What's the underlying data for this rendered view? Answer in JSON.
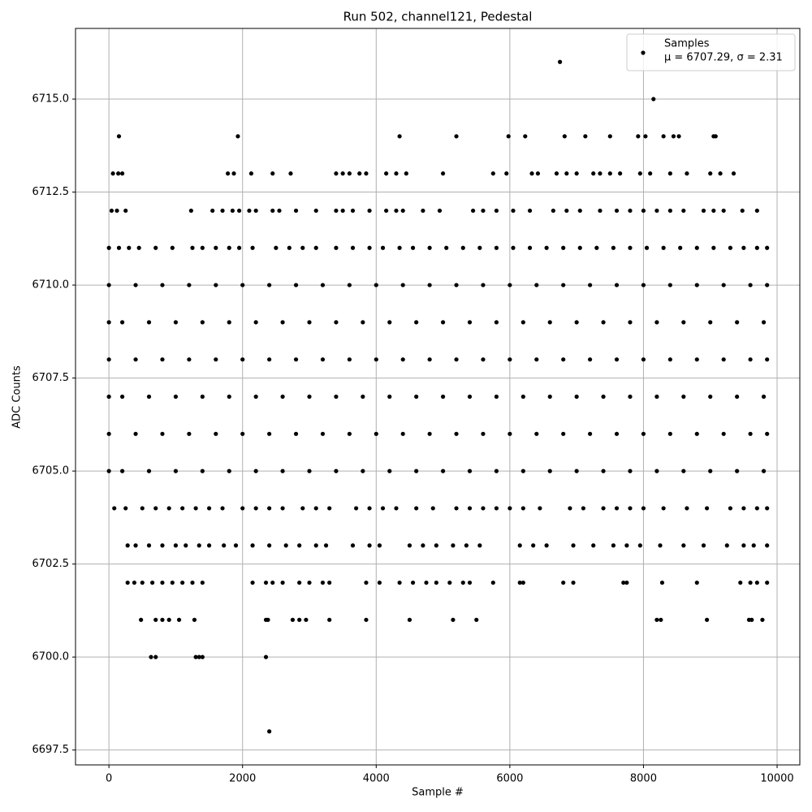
{
  "chart_data": {
    "type": "scatter",
    "title": "Run 502, channel121, Pedestal",
    "x_label": "Sample #",
    "y_label": "ADC Counts",
    "legend_note": "μ = 6707.29, σ = 2.31",
    "legend": "upper right",
    "grid": true,
    "xlim": [
      -500,
      10340
    ],
    "ylim": [
      6697.1,
      6716.9
    ],
    "xticks": [
      0,
      2000,
      4000,
      6000,
      8000,
      10000
    ],
    "yticks": [
      6697.5,
      {
        "value": 6700,
        "label": "6700.0"
      },
      6702.5,
      {
        "value": 6705,
        "label": "6705.0"
      },
      6707.5,
      {
        "value": 6710,
        "label": "6710.0"
      },
      6712.5,
      {
        "value": 6715,
        "label": "6715.0"
      }
    ],
    "x": [
      6750,
      8150,
      150,
      1930,
      4350,
      5200,
      5980,
      6230,
      6820,
      7130,
      7500,
      7920,
      8030,
      8300,
      8450,
      8530,
      9050,
      9080,
      60,
      140,
      200,
      1780,
      1870,
      2130,
      2450,
      2720,
      3400,
      3500,
      3600,
      3750,
      3850,
      4150,
      4300,
      4450,
      5000,
      5750,
      5950,
      6330,
      6420,
      6700,
      6850,
      7000,
      7250,
      7350,
      7500,
      7650,
      7950,
      8100,
      8400,
      8650,
      9000,
      9150,
      9350,
      40,
      120,
      250,
      1230,
      1550,
      1700,
      1850,
      1950,
      2100,
      2200,
      2450,
      2550,
      2800,
      3100,
      3400,
      3500,
      3650,
      3900,
      4150,
      4300,
      4400,
      4700,
      4950,
      5450,
      5600,
      5800,
      6050,
      6300,
      6650,
      6850,
      7050,
      7350,
      7600,
      7800,
      8000,
      8200,
      8400,
      8600,
      8900,
      9050,
      9200,
      9480,
      9700,
      0,
      150,
      300,
      450,
      700,
      950,
      1250,
      1400,
      1600,
      1800,
      1950,
      2150,
      2500,
      2700,
      2900,
      3100,
      3400,
      3650,
      3900,
      4100,
      4350,
      4550,
      4800,
      5050,
      5300,
      5550,
      5800,
      6050,
      6300,
      6550,
      6800,
      7050,
      7300,
      7550,
      7800,
      8050,
      8300,
      8550,
      8800,
      9050,
      9300,
      9500,
      9700,
      9850,
      0,
      400,
      800,
      1200,
      1600,
      2000,
      2400,
      2800,
      3200,
      3600,
      4000,
      4400,
      4800,
      5200,
      5600,
      6000,
      6400,
      6800,
      7200,
      7600,
      8000,
      8400,
      8800,
      9200,
      9600,
      9850,
      0,
      200,
      600,
      1000,
      1400,
      1800,
      2200,
      2600,
      3000,
      3400,
      3800,
      4200,
      4600,
      5000,
      5400,
      5800,
      6200,
      6600,
      7000,
      7400,
      7800,
      8200,
      8600,
      9000,
      9400,
      9800,
      0,
      400,
      800,
      1200,
      1600,
      2000,
      2400,
      2800,
      3200,
      3600,
      4000,
      4400,
      4800,
      5200,
      5600,
      6000,
      6400,
      6800,
      7200,
      7600,
      8000,
      8400,
      8800,
      9200,
      9600,
      9850,
      0,
      200,
      600,
      1000,
      1400,
      1800,
      2200,
      2600,
      3000,
      3400,
      3800,
      4200,
      4600,
      5000,
      5400,
      5800,
      6200,
      6600,
      7000,
      7400,
      7800,
      8200,
      8600,
      9000,
      9400,
      9800,
      0,
      400,
      800,
      1200,
      1600,
      2000,
      2400,
      2800,
      3200,
      3600,
      4000,
      4400,
      4800,
      5200,
      5600,
      6000,
      6400,
      6800,
      7200,
      7600,
      8000,
      8400,
      8800,
      9200,
      9600,
      9850,
      0,
      200,
      600,
      1000,
      1400,
      1800,
      2200,
      2600,
      3000,
      3400,
      3800,
      4200,
      4600,
      5000,
      5400,
      5800,
      6200,
      6600,
      7000,
      7400,
      7800,
      8200,
      8600,
      9000,
      9400,
      9800,
      80,
      250,
      500,
      700,
      900,
      1100,
      1300,
      1500,
      1700,
      2000,
      2200,
      2400,
      2600,
      2900,
      3100,
      3300,
      3700,
      3900,
      4100,
      4300,
      4600,
      4850,
      5200,
      5400,
      5600,
      5800,
      6000,
      6200,
      6450,
      6900,
      7100,
      7400,
      7600,
      7800,
      8000,
      8300,
      8650,
      8950,
      9300,
      9500,
      9700,
      9850,
      280,
      400,
      600,
      800,
      1000,
      1150,
      1350,
      1500,
      1720,
      1900,
      2150,
      2400,
      2650,
      2850,
      3100,
      3250,
      3650,
      3900,
      4050,
      4500,
      4700,
      4900,
      5150,
      5350,
      5550,
      6150,
      6350,
      6550,
      6950,
      7250,
      7550,
      7750,
      7950,
      8250,
      8600,
      8900,
      9250,
      9500,
      9650,
      9850,
      280,
      380,
      500,
      650,
      800,
      950,
      1100,
      1250,
      1400,
      2150,
      2350,
      2450,
      2600,
      2850,
      3000,
      3200,
      3300,
      3850,
      4050,
      4350,
      4550,
      4750,
      4900,
      5100,
      5300,
      5400,
      5750,
      6150,
      6200,
      6800,
      6950,
      7700,
      7750,
      8280,
      8800,
      9450,
      9600,
      9700,
      9850,
      480,
      700,
      800,
      900,
      1050,
      1280,
      2350,
      2380,
      2750,
      2850,
      2950,
      3300,
      3850,
      4500,
      5150,
      5500,
      8200,
      8260,
      8950,
      9580,
      9620,
      9780,
      630,
      700,
      1300,
      1350,
      1400,
      2350,
      2400
    ],
    "series": [
      {
        "name": "Samples",
        "color": "#000000",
        "values": [
          6716,
          6715,
          6714,
          6714,
          6714,
          6714,
          6714,
          6714,
          6714,
          6714,
          6714,
          6714,
          6714,
          6714,
          6714,
          6714,
          6714,
          6714,
          6713,
          6713,
          6713,
          6713,
          6713,
          6713,
          6713,
          6713,
          6713,
          6713,
          6713,
          6713,
          6713,
          6713,
          6713,
          6713,
          6713,
          6713,
          6713,
          6713,
          6713,
          6713,
          6713,
          6713,
          6713,
          6713,
          6713,
          6713,
          6713,
          6713,
          6713,
          6713,
          6713,
          6713,
          6713,
          6712,
          6712,
          6712,
          6712,
          6712,
          6712,
          6712,
          6712,
          6712,
          6712,
          6712,
          6712,
          6712,
          6712,
          6712,
          6712,
          6712,
          6712,
          6712,
          6712,
          6712,
          6712,
          6712,
          6712,
          6712,
          6712,
          6712,
          6712,
          6712,
          6712,
          6712,
          6712,
          6712,
          6712,
          6712,
          6712,
          6712,
          6712,
          6712,
          6712,
          6712,
          6712,
          6712,
          6711,
          6711,
          6711,
          6711,
          6711,
          6711,
          6711,
          6711,
          6711,
          6711,
          6711,
          6711,
          6711,
          6711,
          6711,
          6711,
          6711,
          6711,
          6711,
          6711,
          6711,
          6711,
          6711,
          6711,
          6711,
          6711,
          6711,
          6711,
          6711,
          6711,
          6711,
          6711,
          6711,
          6711,
          6711,
          6711,
          6711,
          6711,
          6711,
          6711,
          6711,
          6711,
          6711,
          6711,
          6710,
          6710,
          6710,
          6710,
          6710,
          6710,
          6710,
          6710,
          6710,
          6710,
          6710,
          6710,
          6710,
          6710,
          6710,
          6710,
          6710,
          6710,
          6710,
          6710,
          6710,
          6710,
          6710,
          6710,
          6710,
          6710,
          6709,
          6709,
          6709,
          6709,
          6709,
          6709,
          6709,
          6709,
          6709,
          6709,
          6709,
          6709,
          6709,
          6709,
          6709,
          6709,
          6709,
          6709,
          6709,
          6709,
          6709,
          6709,
          6709,
          6709,
          6709,
          6709,
          6708,
          6708,
          6708,
          6708,
          6708,
          6708,
          6708,
          6708,
          6708,
          6708,
          6708,
          6708,
          6708,
          6708,
          6708,
          6708,
          6708,
          6708,
          6708,
          6708,
          6708,
          6708,
          6708,
          6708,
          6708,
          6708,
          6707,
          6707,
          6707,
          6707,
          6707,
          6707,
          6707,
          6707,
          6707,
          6707,
          6707,
          6707,
          6707,
          6707,
          6707,
          6707,
          6707,
          6707,
          6707,
          6707,
          6707,
          6707,
          6707,
          6707,
          6707,
          6707,
          6706,
          6706,
          6706,
          6706,
          6706,
          6706,
          6706,
          6706,
          6706,
          6706,
          6706,
          6706,
          6706,
          6706,
          6706,
          6706,
          6706,
          6706,
          6706,
          6706,
          6706,
          6706,
          6706,
          6706,
          6706,
          6706,
          6705,
          6705,
          6705,
          6705,
          6705,
          6705,
          6705,
          6705,
          6705,
          6705,
          6705,
          6705,
          6705,
          6705,
          6705,
          6705,
          6705,
          6705,
          6705,
          6705,
          6705,
          6705,
          6705,
          6705,
          6705,
          6705,
          6704,
          6704,
          6704,
          6704,
          6704,
          6704,
          6704,
          6704,
          6704,
          6704,
          6704,
          6704,
          6704,
          6704,
          6704,
          6704,
          6704,
          6704,
          6704,
          6704,
          6704,
          6704,
          6704,
          6704,
          6704,
          6704,
          6704,
          6704,
          6704,
          6704,
          6704,
          6704,
          6704,
          6704,
          6704,
          6704,
          6704,
          6704,
          6704,
          6704,
          6704,
          6704,
          6703,
          6703,
          6703,
          6703,
          6703,
          6703,
          6703,
          6703,
          6703,
          6703,
          6703,
          6703,
          6703,
          6703,
          6703,
          6703,
          6703,
          6703,
          6703,
          6703,
          6703,
          6703,
          6703,
          6703,
          6703,
          6703,
          6703,
          6703,
          6703,
          6703,
          6703,
          6703,
          6703,
          6703,
          6703,
          6703,
          6703,
          6703,
          6703,
          6703,
          6702,
          6702,
          6702,
          6702,
          6702,
          6702,
          6702,
          6702,
          6702,
          6702,
          6702,
          6702,
          6702,
          6702,
          6702,
          6702,
          6702,
          6702,
          6702,
          6702,
          6702,
          6702,
          6702,
          6702,
          6702,
          6702,
          6702,
          6702,
          6702,
          6702,
          6702,
          6702,
          6702,
          6702,
          6702,
          6702,
          6702,
          6702,
          6702,
          6701,
          6701,
          6701,
          6701,
          6701,
          6701,
          6701,
          6701,
          6701,
          6701,
          6701,
          6701,
          6701,
          6701,
          6701,
          6701,
          6701,
          6701,
          6701,
          6701,
          6701,
          6701,
          6700,
          6700,
          6700,
          6700,
          6700,
          6700,
          6698
        ]
      }
    ]
  }
}
